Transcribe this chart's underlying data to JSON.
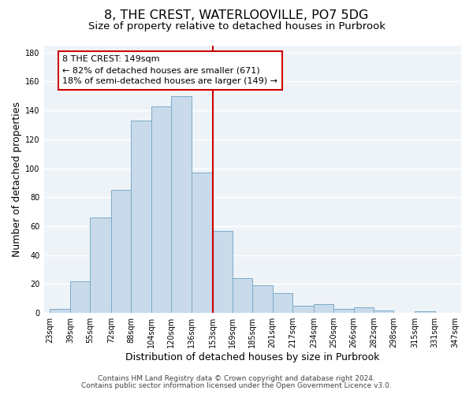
{
  "title": "8, THE CREST, WATERLOOVILLE, PO7 5DG",
  "subtitle": "Size of property relative to detached houses in Purbrook",
  "xlabel": "Distribution of detached houses by size in Purbrook",
  "ylabel": "Number of detached properties",
  "bar_left_edges": [
    23,
    39,
    55,
    72,
    88,
    104,
    120,
    136,
    153,
    169,
    185,
    201,
    217,
    234,
    250,
    266,
    282,
    298,
    315,
    331
  ],
  "bar_heights": [
    3,
    22,
    66,
    85,
    133,
    143,
    150,
    97,
    57,
    24,
    19,
    14,
    5,
    6,
    3,
    4,
    2,
    0,
    1,
    0
  ],
  "bar_widths": [
    16,
    16,
    17,
    16,
    16,
    16,
    16,
    17,
    16,
    16,
    16,
    16,
    17,
    16,
    16,
    16,
    16,
    17,
    16,
    16
  ],
  "tick_labels": [
    "23sqm",
    "39sqm",
    "55sqm",
    "72sqm",
    "88sqm",
    "104sqm",
    "120sqm",
    "136sqm",
    "153sqm",
    "169sqm",
    "185sqm",
    "201sqm",
    "217sqm",
    "234sqm",
    "250sqm",
    "266sqm",
    "282sqm",
    "298sqm",
    "315sqm",
    "331sqm",
    "347sqm"
  ],
  "tick_positions": [
    23,
    39,
    55,
    72,
    88,
    104,
    120,
    136,
    153,
    169,
    185,
    201,
    217,
    234,
    250,
    266,
    282,
    298,
    315,
    331,
    347
  ],
  "bar_color": "#c9daea",
  "bar_edge_color": "#7aaac8",
  "vline_x": 153,
  "vline_color": "#cc0000",
  "annotation_title": "8 THE CREST: 149sqm",
  "annotation_line1": "← 82% of detached houses are smaller (671)",
  "annotation_line2": "18% of semi-detached houses are larger (149) →",
  "annotation_box_color": "#cc0000",
  "annotation_box_fill": "#ffffff",
  "ylim": [
    0,
    185
  ],
  "xlim": [
    18,
    352
  ],
  "yticks": [
    0,
    20,
    40,
    60,
    80,
    100,
    120,
    140,
    160,
    180
  ],
  "footer1": "Contains HM Land Registry data © Crown copyright and database right 2024.",
  "footer2": "Contains public sector information licensed under the Open Government Licence v3.0.",
  "bg_color": "#ffffff",
  "plot_bg_color": "#eef3f8",
  "title_fontsize": 11.5,
  "subtitle_fontsize": 9.5,
  "axis_label_fontsize": 9,
  "tick_fontsize": 7,
  "footer_fontsize": 6.5,
  "annotation_fontsize": 8
}
